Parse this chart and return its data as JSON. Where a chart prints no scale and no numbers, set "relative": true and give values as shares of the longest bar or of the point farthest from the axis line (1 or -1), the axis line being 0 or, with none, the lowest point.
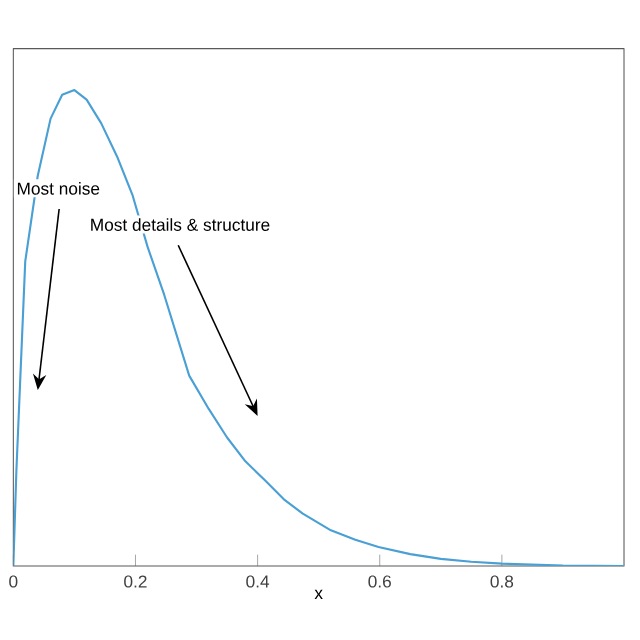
{
  "chart_data": {
    "type": "line",
    "relative": true,
    "xlabel": "x",
    "x": [
      0,
      0.005,
      0.0195,
      0.04,
      0.061,
      0.08,
      0.1,
      0.12,
      0.144,
      0.17,
      0.195,
      0.22,
      0.247,
      0.288,
      0.32,
      0.35,
      0.38,
      0.412,
      0.443,
      0.474,
      0.52,
      0.56,
      0.598,
      0.65,
      0.7,
      0.75,
      0.8,
      0.9,
      1.0
    ],
    "xlim": [
      0,
      1
    ],
    "xticks": [
      0,
      0.2,
      0.4,
      0.6,
      0.8
    ],
    "series": [
      {
        "color": "#4a9fd4",
        "values": [
          0,
          0.2,
          0.64,
          0.82,
          0.94,
          0.99,
          1,
          0.98,
          0.93,
          0.86,
          0.78,
          0.67,
          0.57,
          0.4,
          0.33,
          0.27,
          0.22,
          0.18,
          0.14,
          0.11,
          0.075,
          0.055,
          0.04,
          0.025,
          0.015,
          0.009,
          0.005,
          0.001,
          0
        ]
      }
    ],
    "annotations": [
      "Most noise",
      "Most details & structure"
    ],
    "grid": false,
    "marker": "none",
    "line_style": "solid"
  }
}
